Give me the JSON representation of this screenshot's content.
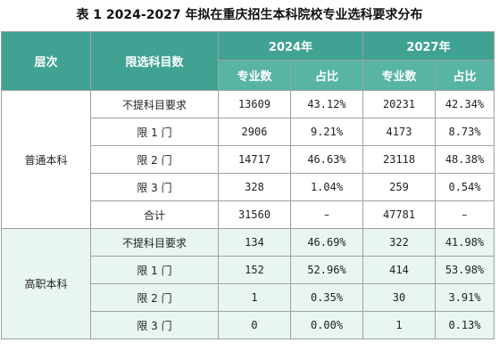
{
  "title": "表 1 2024-2027 年拟在重庆招生本科院校专业选科要求分布",
  "headers": {
    "level": "层次",
    "subject_req": "限选科目数",
    "year_2024": "2024年",
    "year_2027": "2027年",
    "count": "专业数",
    "ratio": "占比"
  },
  "groups": [
    {
      "name": "普通本科",
      "rows": [
        {
          "req": "不提科目要求",
          "c2024": "13609",
          "r2024": "43.12%",
          "c2027": "20231",
          "r2027": "42.34%"
        },
        {
          "req": "限 1 门",
          "c2024": "2906",
          "r2024": "9.21%",
          "c2027": "4173",
          "r2027": "8.73%"
        },
        {
          "req": "限 2 门",
          "c2024": "14717",
          "r2024": "46.63%",
          "c2027": "23118",
          "r2027": "48.38%"
        },
        {
          "req": "限 3 门",
          "c2024": "328",
          "r2024": "1.04%",
          "c2027": "259",
          "r2027": "0.54%"
        },
        {
          "req": "合计",
          "c2024": "31560",
          "r2024": "–",
          "c2027": "47781",
          "r2027": "–"
        }
      ]
    },
    {
      "name": "高职本科",
      "rows": [
        {
          "req": "不提科目要求",
          "c2024": "134",
          "r2024": "46.69%",
          "c2027": "322",
          "r2027": "41.98%"
        },
        {
          "req": "限 1 门",
          "c2024": "152",
          "r2024": "52.96%",
          "c2027": "414",
          "r2027": "53.98%"
        },
        {
          "req": "限 2 门",
          "c2024": "1",
          "r2024": "0.35%",
          "c2027": "30",
          "r2027": "3.91%"
        },
        {
          "req": "限 3 门",
          "c2024": "0",
          "r2024": "0.00%",
          "c2027": "1",
          "r2027": "0.13%"
        }
      ]
    }
  ]
}
